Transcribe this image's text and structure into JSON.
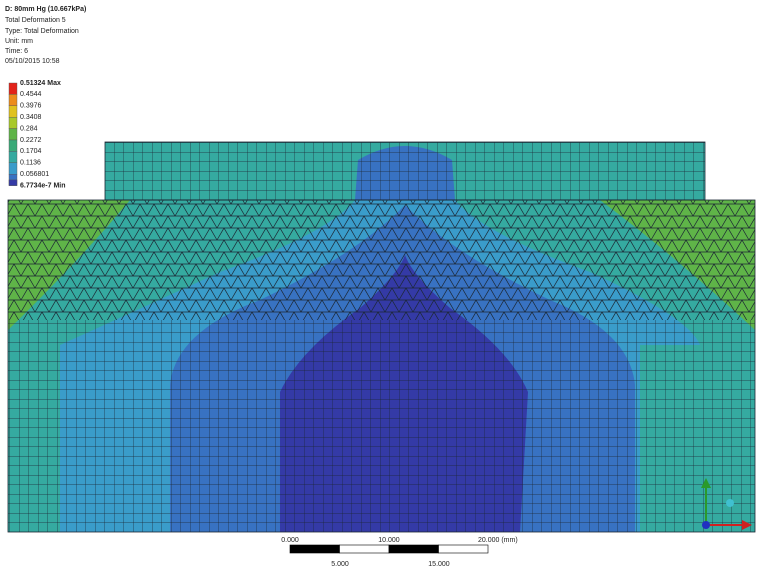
{
  "header": {
    "title": "D: 80mm Hg (10.667kPa)",
    "lines": [
      "Total Deformation 5",
      "Type: Total Deformation",
      "Unit: mm",
      "Time: 6",
      "05/10/2015 10:58"
    ]
  },
  "legend": {
    "labels": [
      "0.51324 Max",
      "0.4544",
      "0.3976",
      "0.3408",
      "0.284",
      "0.2272",
      "0.1704",
      "0.1136",
      "0.056801",
      "6.7734e-7 Min"
    ],
    "colors": [
      "#e2231a",
      "#ec8c1c",
      "#e0c21e",
      "#a9c92a",
      "#5fb448",
      "#3aaa78",
      "#35aaa0",
      "#3a9cca",
      "#3872c2",
      "#343aa6"
    ]
  },
  "scale_bar": {
    "top_labels": [
      "0.000",
      "10.000",
      "20.000 (mm)"
    ],
    "bottom_labels": [
      "5.000",
      "15.000"
    ]
  }
}
